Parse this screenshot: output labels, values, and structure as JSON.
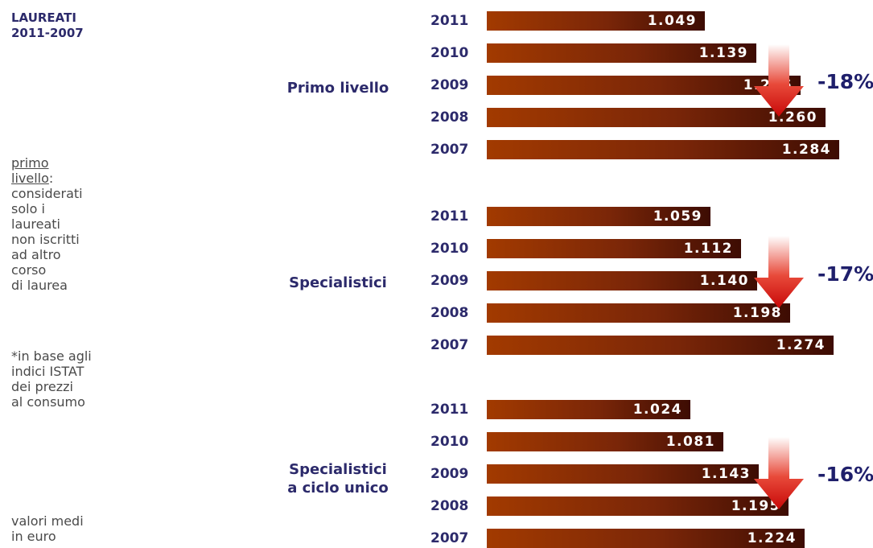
{
  "title": [
    "LAUREATI",
    "2011-2007"
  ],
  "note_primo": {
    "underlined": [
      "primo",
      "livello"
    ],
    "rest_first": ":",
    "lines": [
      "considerati",
      "solo i",
      "laureati",
      "non iscritti",
      "ad altro",
      "corso",
      "di laurea"
    ]
  },
  "note_istat": [
    "*in base agli",
    "indici ISTAT",
    "dei prezzi",
    "al consumo"
  ],
  "note_valori": [
    "valori medi",
    "in euro"
  ],
  "colors": {
    "text_dark": "#2c2a6b",
    "bar_start": "#a23a00",
    "bar_end": "#3d0c03",
    "arrow": "#cc0a0a"
  },
  "chart_data": {
    "type": "bar",
    "orientation": "horizontal",
    "groups": [
      {
        "name": "Primo livello",
        "categories": [
          "2011",
          "2010",
          "2009",
          "2008",
          "2007"
        ],
        "values": [
          1049,
          1139,
          1216,
          1260,
          1284
        ],
        "value_labels": [
          "1.049",
          "1.139",
          "1.216",
          "1.260",
          "1.284"
        ],
        "change": "-18%"
      },
      {
        "name": "Specialistici",
        "categories": [
          "2011",
          "2010",
          "2009",
          "2008",
          "2007"
        ],
        "values": [
          1059,
          1112,
          1140,
          1198,
          1274
        ],
        "value_labels": [
          "1.059",
          "1.112",
          "1.140",
          "1.198",
          "1.274"
        ],
        "change": "-17%"
      },
      {
        "name": "Specialistici a ciclo unico",
        "name_lines": [
          "Specialistici",
          "a ciclo unico"
        ],
        "categories": [
          "2011",
          "2010",
          "2009",
          "2008",
          "2007"
        ],
        "values": [
          1024,
          1081,
          1143,
          1195,
          1224
        ],
        "value_labels": [
          "1.024",
          "1.081",
          "1.143",
          "1.195",
          "1.224"
        ],
        "change": "-16%"
      }
    ]
  }
}
